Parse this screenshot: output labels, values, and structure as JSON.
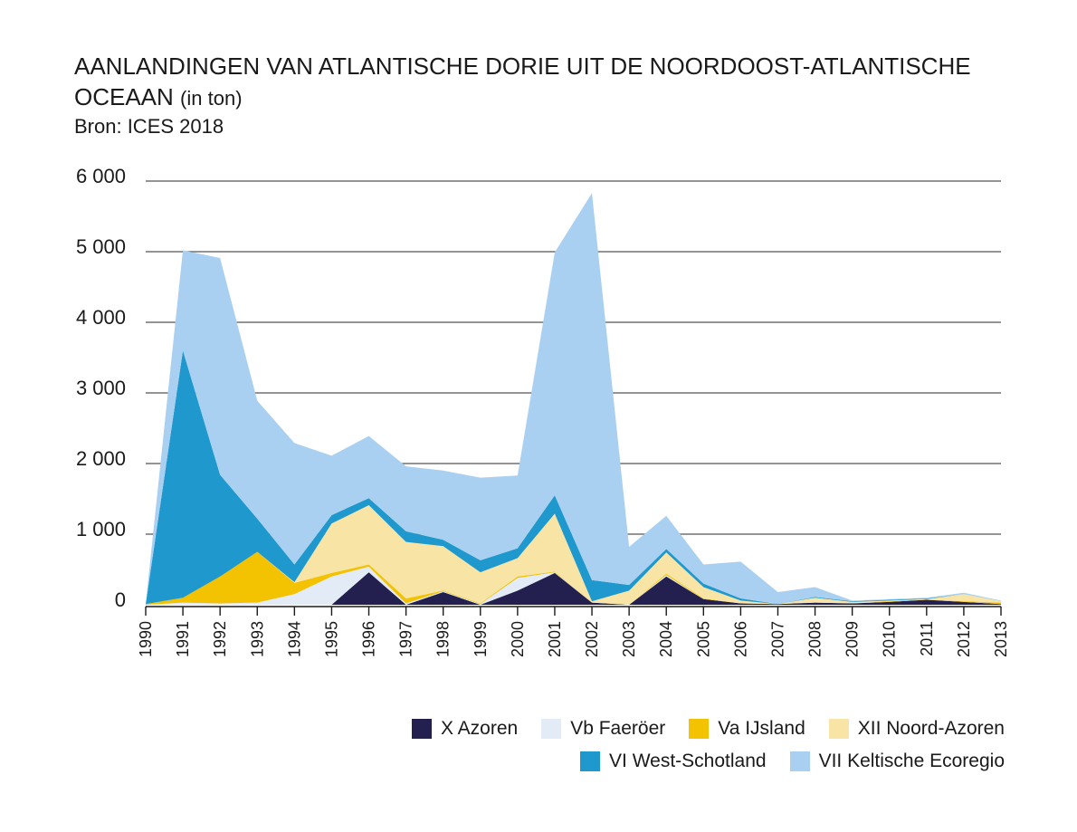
{
  "header": {
    "title_main": "AANLANDINGEN VAN ATLANTISCHE DORIE UIT DE NOORDOOST-ATLANTISCHE OCEAAN",
    "title_unit": "(in ton)",
    "source": "Bron: ICES 2018"
  },
  "chart_data": {
    "type": "area",
    "stacked": true,
    "title": "AANLANDINGEN VAN ATLANTISCHE DORIE UIT DE NOORDOOST-ATLANTISCHE OCEAAN (in ton)",
    "ylim": [
      0,
      6000
    ],
    "yticks": [
      0,
      1000,
      2000,
      3000,
      4000,
      5000,
      6000
    ],
    "ytick_labels": [
      "0",
      "1 000",
      "2 000",
      "3 000",
      "4 000",
      "5 000",
      "6 000"
    ],
    "grid": true,
    "legend_position": "bottom-right",
    "x": [
      "1990",
      "1991",
      "1992",
      "1993",
      "1994",
      "1995",
      "1996",
      "1997",
      "1998",
      "1999",
      "2000",
      "2001",
      "2002",
      "2003",
      "2004",
      "2005",
      "2006",
      "2007",
      "2008",
      "2009",
      "2010",
      "2011",
      "2012",
      "2013"
    ],
    "series": [
      {
        "name": "X Azoren",
        "color": "#23204f",
        "values": [
          0,
          0,
          0,
          0,
          0,
          0,
          460,
          0,
          180,
          0,
          200,
          450,
          30,
          0,
          400,
          80,
          20,
          10,
          30,
          20,
          40,
          70,
          40,
          10
        ]
      },
      {
        "name": "Vb Faeröer",
        "color": "#e2ebf6",
        "values": [
          0,
          30,
          20,
          30,
          150,
          400,
          80,
          20,
          10,
          10,
          180,
          10,
          0,
          0,
          20,
          0,
          0,
          0,
          0,
          0,
          0,
          0,
          0,
          0
        ]
      },
      {
        "name": "Va IJsland",
        "color": "#f3c200",
        "values": [
          10,
          70,
          380,
          720,
          160,
          50,
          30,
          70,
          10,
          10,
          20,
          10,
          0,
          0,
          20,
          10,
          0,
          0,
          0,
          0,
          10,
          0,
          10,
          20
        ]
      },
      {
        "name": "XII Noord-Azoren",
        "color": "#f8e4a4",
        "values": [
          0,
          0,
          0,
          0,
          10,
          700,
          840,
          800,
          630,
          440,
          260,
          820,
          20,
          200,
          300,
          160,
          40,
          0,
          70,
          20,
          10,
          10,
          100,
          20
        ]
      },
      {
        "name": "VI West-Schotland",
        "color": "#1f98cd",
        "values": [
          0,
          3500,
          1440,
          470,
          250,
          120,
          100,
          150,
          90,
          170,
          140,
          260,
          300,
          80,
          50,
          50,
          30,
          0,
          10,
          10,
          10,
          10,
          0,
          0
        ]
      },
      {
        "name": "VII Keltische Ecoregio",
        "color": "#a9d0f0",
        "values": [
          0,
          1420,
          3070,
          1670,
          1720,
          840,
          880,
          920,
          980,
          1170,
          1030,
          3440,
          5480,
          540,
          470,
          270,
          520,
          170,
          140,
          10,
          10,
          10,
          20,
          10
        ]
      }
    ]
  },
  "legend": {
    "rows": [
      [
        0,
        1,
        2,
        3
      ],
      [
        4,
        5
      ]
    ]
  }
}
